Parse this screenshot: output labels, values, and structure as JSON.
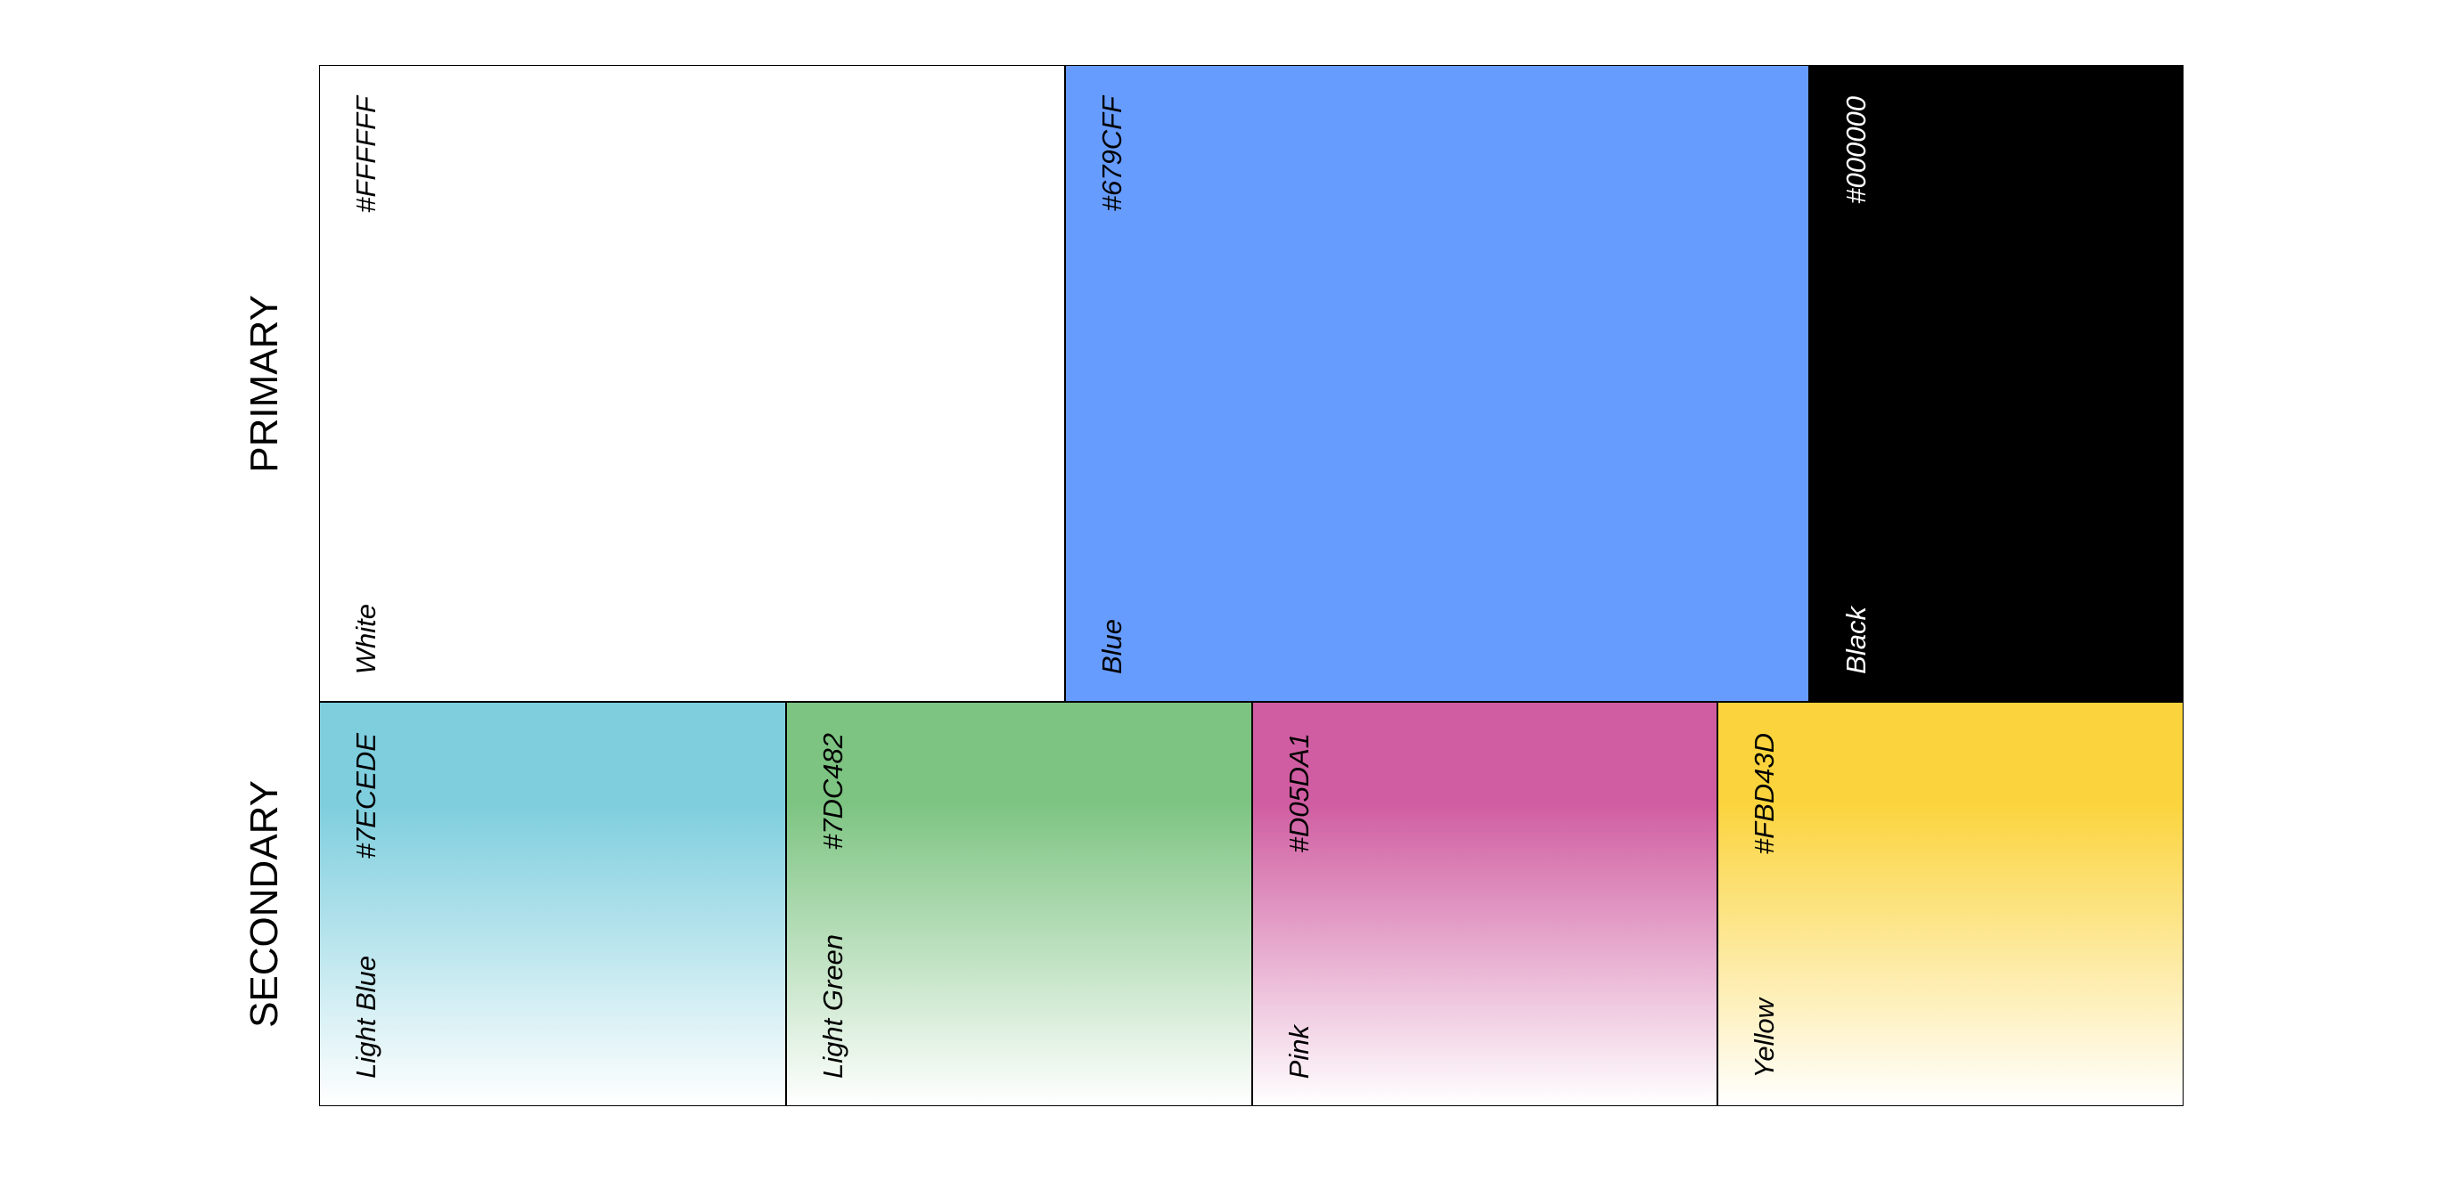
{
  "groups": [
    {
      "label": "PRIMARY",
      "swatches": [
        {
          "name": "White",
          "hex": "#FFFFFF"
        },
        {
          "name": "Blue",
          "hex": "#679CFF"
        },
        {
          "name": "Black",
          "hex": "#000000"
        }
      ]
    },
    {
      "label": "SECONDARY",
      "swatches": [
        {
          "name": "Light Blue",
          "hex": "#7ECEDE"
        },
        {
          "name": "Light Green",
          "hex": "#7DC482"
        },
        {
          "name": "Pink",
          "hex": "#D05DA1"
        },
        {
          "name": "Yellow",
          "hex": "#FBD43D"
        }
      ]
    }
  ]
}
